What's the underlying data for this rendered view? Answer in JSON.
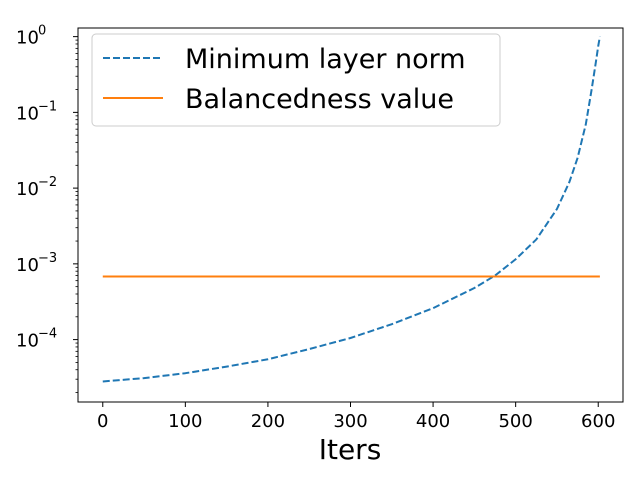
{
  "chart_data": {
    "type": "line",
    "title": "",
    "xlabel": "Iters",
    "ylabel": "",
    "xlim": [
      -30,
      630
    ],
    "ylim": [
      1.5e-05,
      1.3
    ],
    "yscale": "log",
    "grid": false,
    "legend_position": "top-left",
    "x_ticks": [
      {
        "value": 0,
        "label": "0"
      },
      {
        "value": 100,
        "label": "100"
      },
      {
        "value": 200,
        "label": "200"
      },
      {
        "value": 300,
        "label": "300"
      },
      {
        "value": 400,
        "label": "400"
      },
      {
        "value": 500,
        "label": "500"
      },
      {
        "value": 600,
        "label": "600"
      }
    ],
    "y_ticks": [
      {
        "value": 0.0001,
        "base": "10",
        "exp": "−4"
      },
      {
        "value": 0.001,
        "base": "10",
        "exp": "−3"
      },
      {
        "value": 0.01,
        "base": "10",
        "exp": "−2"
      },
      {
        "value": 0.1,
        "base": "10",
        "exp": "−1"
      },
      {
        "value": 1,
        "base": "10",
        "exp": "0"
      }
    ],
    "series": [
      {
        "name": "Minimum layer norm",
        "color": "#1f77b4",
        "style": "dashed",
        "x": [
          0,
          50,
          100,
          150,
          200,
          250,
          300,
          350,
          400,
          450,
          475,
          500,
          525,
          550,
          565,
          575,
          585,
          592,
          597,
          600,
          602
        ],
        "y": [
          2.8e-05,
          3.1e-05,
          3.6e-05,
          4.4e-05,
          5.5e-05,
          7.5e-05,
          0.000105,
          0.00016,
          0.00026,
          0.00048,
          0.0007,
          0.00115,
          0.0021,
          0.0053,
          0.012,
          0.025,
          0.07,
          0.2,
          0.45,
          0.75,
          1.0
        ]
      },
      {
        "name": "Balancedness value",
        "color": "#ff7f0e",
        "style": "solid",
        "x": [
          0,
          602
        ],
        "y": [
          0.00068,
          0.00068
        ]
      }
    ]
  }
}
